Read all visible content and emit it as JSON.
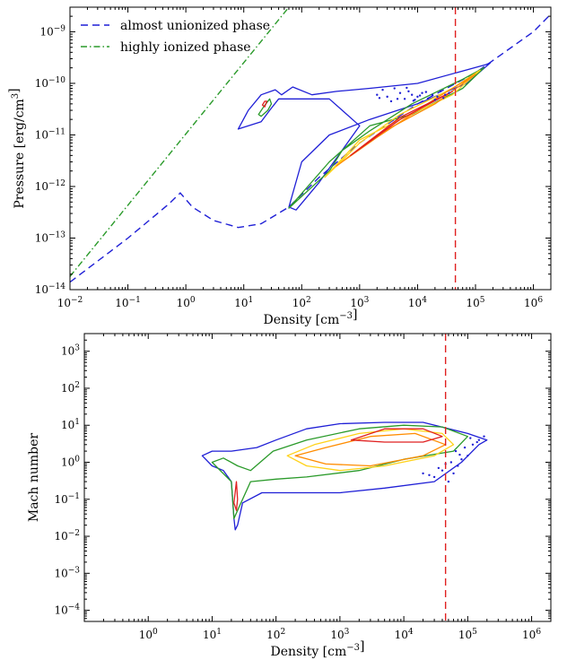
{
  "chart_data": [
    {
      "type": "line",
      "title": "",
      "xlabel": "Density [cm$^{-3}$]",
      "ylabel": "Pressure [erg/cm$^3$]",
      "x_scale": "log",
      "y_scale": "log",
      "xlim": [
        0.01,
        2000000
      ],
      "ylim": [
        1e-14,
        3e-09
      ],
      "x_ticks": [
        {
          "value": 0.01,
          "label": "10",
          "exp": "−2"
        },
        {
          "value": 0.1,
          "label": "10",
          "exp": "−1"
        },
        {
          "value": 1,
          "label": "10",
          "exp": "0"
        },
        {
          "value": 10,
          "label": "10",
          "exp": "1"
        },
        {
          "value": 100,
          "label": "10",
          "exp": "2"
        },
        {
          "value": 1000,
          "label": "10",
          "exp": "3"
        },
        {
          "value": 10000,
          "label": "10",
          "exp": "4"
        },
        {
          "value": 100000,
          "label": "10",
          "exp": "5"
        },
        {
          "value": 1000000,
          "label": "10",
          "exp": "6"
        }
      ],
      "y_ticks": [
        {
          "value": 1e-14,
          "label": "10",
          "exp": "−14"
        },
        {
          "value": 1e-13,
          "label": "10",
          "exp": "−13"
        },
        {
          "value": 1e-12,
          "label": "10",
          "exp": "−12"
        },
        {
          "value": 1e-11,
          "label": "10",
          "exp": "−11"
        },
        {
          "value": 1e-10,
          "label": "10",
          "exp": "−10"
        },
        {
          "value": 1e-09,
          "label": "10",
          "exp": "−9"
        }
      ],
      "legend": {
        "placement": "top-left",
        "entries": [
          {
            "name": "almost unionized phase",
            "color": "#1f1fd6",
            "style": "dashed"
          },
          {
            "name": "highly ionized phase",
            "color": "#2a9a2a",
            "style": "dashdot"
          }
        ]
      },
      "series": [
        {
          "name": "highly ionized phase",
          "color": "#2a9a2a",
          "style": "dashdot",
          "x": [
            0.01,
            60
          ],
          "y": [
            1.8e-14,
            3e-09
          ]
        },
        {
          "name": "almost unionized phase",
          "color": "#1f1fd6",
          "style": "dashed",
          "x": [
            0.01,
            0.1,
            0.5,
            0.8,
            1.3,
            3,
            8,
            20,
            60,
            200,
            1000,
            10000,
            100000,
            1000000,
            2000000
          ],
          "y": [
            1.4e-14,
            1e-13,
            4.5e-13,
            7.5e-13,
            4e-13,
            2.2e-13,
            1.6e-13,
            1.9e-13,
            4e-13,
            1.5e-12,
            7e-12,
            4e-11,
            1.6e-10,
            1e-09,
            2.2e-09
          ]
        }
      ],
      "threshold_line": {
        "x": 45000,
        "color": "#e02020",
        "style": "dashed"
      },
      "contours": {
        "colors": [
          "#1f1fd6",
          "#2a9a2a",
          "#ffd21a",
          "#ff8c00",
          "#e02020"
        ],
        "regions": [
          {
            "level": "blue",
            "x": [
              8,
              12,
              20,
              35,
              45,
              70,
              150,
              400,
              1500,
              10000,
              150000,
              180000,
              70000,
              10000,
              1500,
              300,
              100,
              60,
              80,
              200,
              1000,
              300,
              40,
              28,
              20,
              8
            ],
            "y": [
              1.3e-11,
              3e-11,
              6e-11,
              7.5e-11,
              6e-11,
              8.5e-11,
              6e-11,
              7e-11,
              8e-11,
              1e-10,
              2.3e-10,
              2.5e-10,
              1e-10,
              4e-11,
              2e-11,
              1e-11,
              3e-12,
              4e-13,
              3.5e-13,
              1.2e-12,
              1.5e-11,
              5e-11,
              5e-11,
              3e-11,
              1.8e-11,
              1.3e-11
            ]
          },
          {
            "level": "green",
            "x": [
              18,
              22,
              28,
              30,
              26,
              20,
              18
            ],
            "y": [
              2.5e-11,
              3.5e-11,
              5e-11,
              4e-11,
              3e-11,
              2.3e-11,
              2.5e-11
            ]
          },
          {
            "level": "green",
            "x": [
              60,
              300,
              1500,
              8000,
              60000,
              140000,
              60000,
              8000,
              1500,
              500,
              300,
              60
            ],
            "y": [
              3.8e-13,
              3e-12,
              1.5e-11,
              2.5e-11,
              8e-11,
              2e-10,
              1.2e-10,
              4e-11,
              1.2e-11,
              5e-12,
              2e-12,
              3.8e-13
            ]
          },
          {
            "level": "yellow",
            "x": [
              250,
              1000,
              5000,
              40000,
              120000,
              40000,
              5000,
              1000,
              400,
              250
            ],
            "y": [
              1.5e-12,
              8e-12,
              2e-11,
              6e-11,
              1.8e-10,
              8e-11,
              2.5e-11,
              7e-12,
              2.5e-12,
              1.5e-12
            ]
          },
          {
            "level": "orange",
            "x": [
              400,
              2000,
              20000,
              100000,
              20000,
              2000,
              500,
              400
            ],
            "y": [
              2.5e-12,
              1e-11,
              4e-11,
              1.5e-10,
              5e-11,
              9e-12,
              3e-12,
              2.5e-12
            ]
          },
          {
            "level": "red",
            "x": [
              700,
              5000,
              40000,
              5000,
              700
            ],
            "y": [
              4e-12,
              2e-11,
              7e-11,
              2.2e-11,
              4e-12
            ]
          },
          {
            "level": "red",
            "x": [
              21,
              23,
              25,
              23,
              21
            ],
            "y": [
              3.8e-11,
              4.5e-11,
              4.5e-11,
              3.5e-11,
              3.8e-11
            ]
          }
        ]
      },
      "scatter_points": {
        "color": "#1f1fd6",
        "x": [
          2000,
          2500,
          3000,
          4000,
          5000,
          6000,
          7000,
          8000,
          10000,
          12000,
          15000,
          18000,
          22000,
          25000,
          30000,
          35000,
          3500,
          4500,
          9000,
          11000,
          14000,
          20000,
          28000,
          2200,
          6500,
          8500
        ],
        "y": [
          6e-11,
          7.5e-11,
          5.5e-11,
          8e-11,
          6.5e-11,
          5e-11,
          7e-11,
          6e-11,
          5.5e-11,
          6.5e-11,
          5e-11,
          6e-11,
          5.5e-11,
          7e-11,
          6e-11,
          6.5e-11,
          4.5e-11,
          5e-11,
          4.8e-11,
          5.8e-11,
          6.8e-11,
          4.8e-11,
          5.2e-11,
          5.2e-11,
          8.2e-11,
          4.6e-11
        ]
      }
    },
    {
      "type": "line",
      "title": "",
      "xlabel": "Density [cm$^{-3}$]",
      "ylabel": "Mach number",
      "x_scale": "log",
      "y_scale": "log",
      "xlim": [
        0.1,
        2000000
      ],
      "ylim": [
        5e-05,
        3000
      ],
      "x_ticks": [
        {
          "value": 1,
          "label": "10",
          "exp": "0"
        },
        {
          "value": 10,
          "label": "10",
          "exp": "1"
        },
        {
          "value": 100,
          "label": "10",
          "exp": "2"
        },
        {
          "value": 1000,
          "label": "10",
          "exp": "3"
        },
        {
          "value": 10000,
          "label": "10",
          "exp": "4"
        },
        {
          "value": 100000,
          "label": "10",
          "exp": "5"
        },
        {
          "value": 1000000,
          "label": "10",
          "exp": "6"
        }
      ],
      "y_ticks": [
        {
          "value": 0.0001,
          "label": "10",
          "exp": "−4"
        },
        {
          "value": 0.001,
          "label": "10",
          "exp": "−3"
        },
        {
          "value": 0.01,
          "label": "10",
          "exp": "−2"
        },
        {
          "value": 0.1,
          "label": "10",
          "exp": "−1"
        },
        {
          "value": 1,
          "label": "10",
          "exp": "0"
        },
        {
          "value": 10,
          "label": "10",
          "exp": "1"
        },
        {
          "value": 100,
          "label": "10",
          "exp": "2"
        },
        {
          "value": 1000,
          "label": "10",
          "exp": "3"
        }
      ],
      "threshold_line": {
        "x": 45000,
        "color": "#e02020",
        "style": "dashed"
      },
      "contours": {
        "colors": [
          "#1f1fd6",
          "#2a9a2a",
          "#ffd21a",
          "#ff8c00",
          "#e02020"
        ],
        "regions": [
          {
            "level": "blue",
            "x": [
              7,
              10,
              20,
              50,
              100,
              300,
              1000,
              5000,
              20000,
              100000,
              200000,
              150000,
              80000,
              30000,
              5000,
              1000,
              200,
              60,
              30,
              25,
              23,
              22,
              20,
              15,
              10,
              7
            ],
            "y": [
              1.5,
              2,
              2,
              2.5,
              4,
              8,
              11,
              12,
              12,
              6,
              4,
              3,
              1,
              0.3,
              0.2,
              0.15,
              0.15,
              0.15,
              0.08,
              0.02,
              0.015,
              0.03,
              0.3,
              0.6,
              0.8,
              1.5
            ]
          },
          {
            "level": "green",
            "x": [
              10,
              15,
              25,
              40,
              90,
              300,
              2000,
              10000,
              40000,
              100000,
              60000,
              10000,
              2000,
              300,
              100,
              40,
              25,
              22,
              20,
              10
            ],
            "y": [
              1,
              1.3,
              0.8,
              0.6,
              2,
              4,
              8,
              10,
              9,
              5,
              2,
              1.2,
              0.6,
              0.4,
              0.35,
              0.3,
              0.05,
              0.03,
              0.3,
              1
            ]
          },
          {
            "level": "yellow",
            "x": [
              150,
              400,
              2000,
              10000,
              40000,
              60000,
              30000,
              5000,
              1000,
              300,
              150
            ],
            "y": [
              1.5,
              3,
              6,
              8,
              6,
              3,
              1.5,
              0.8,
              0.6,
              0.8,
              1.5
            ]
          },
          {
            "level": "orange",
            "x": [
              200,
              600,
              3000,
              15000,
              45000,
              20000,
              3000,
              600,
              200
            ],
            "y": [
              1.5,
              2.5,
              5,
              6,
              3,
              1.5,
              0.8,
              0.9,
              1.5
            ]
          },
          {
            "level": "red",
            "x": [
              1500,
              5000,
              20000,
              40000,
              20000,
              5000,
              1500
            ],
            "y": [
              4,
              8,
              8,
              5,
              3.5,
              3.5,
              4
            ]
          },
          {
            "level": "red",
            "x": [
              22,
              24,
              25,
              24,
              22
            ],
            "y": [
              0.08,
              0.3,
              0.1,
              0.05,
              0.08
            ]
          }
        ]
      },
      "scatter_points": {
        "color": "#1f1fd6",
        "x": [
          20000,
          30000,
          40000,
          50000,
          60000,
          70000,
          80000,
          100000,
          120000,
          150000,
          180000,
          35000,
          45000,
          55000,
          65000,
          90000,
          110000,
          140000,
          25000,
          75000
        ],
        "y": [
          0.5,
          0.4,
          0.6,
          0.3,
          0.5,
          0.8,
          1.2,
          1.5,
          3,
          4,
          5,
          0.7,
          0.9,
          1,
          2,
          2.5,
          4.5,
          3.5,
          0.45,
          1.6
        ]
      }
    }
  ]
}
